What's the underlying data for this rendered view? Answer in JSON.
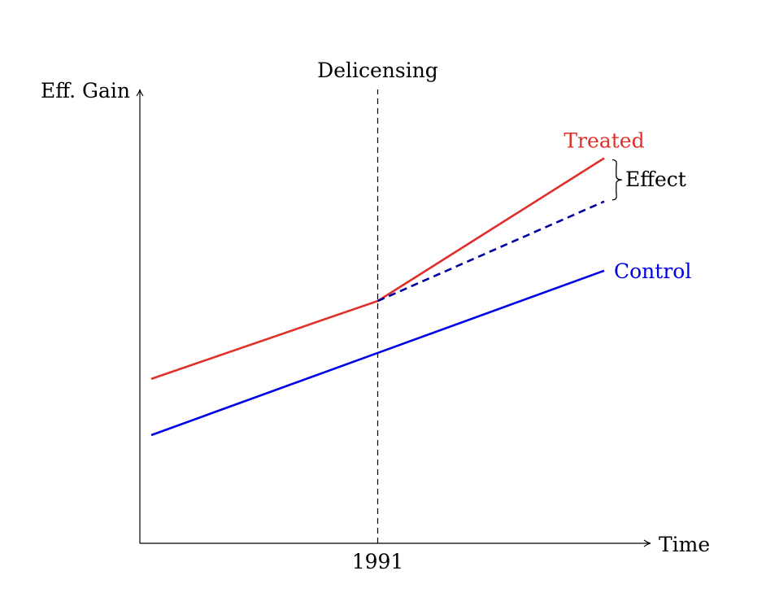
{
  "chart_data": {
    "type": "line",
    "title": "",
    "xlabel": "Time",
    "ylabel": "Eff. Gain",
    "x_tick_label": "1991",
    "event_label": "Delicensing",
    "effect_label": "Effect",
    "colors": {
      "treated": "#e0302a",
      "control": "#0000e6",
      "counterfactual": "#0000a0",
      "axis": "#000000"
    },
    "series": [
      {
        "name": "Treated",
        "color": "#e0302a",
        "style": "solid",
        "points": [
          [
            0,
            3.8
          ],
          [
            0.5,
            5.6
          ],
          [
            1,
            8.9
          ]
        ]
      },
      {
        "name": "Control",
        "color": "#0000e6",
        "style": "solid",
        "points": [
          [
            0,
            2.5
          ],
          [
            0.5,
            4.4
          ],
          [
            1,
            6.3
          ]
        ]
      },
      {
        "name": "",
        "color": "#0000a0",
        "style": "dashed",
        "points": [
          [
            0.5,
            5.6
          ],
          [
            1,
            7.9
          ]
        ]
      }
    ],
    "event_x": 0.5,
    "grid": false
  }
}
